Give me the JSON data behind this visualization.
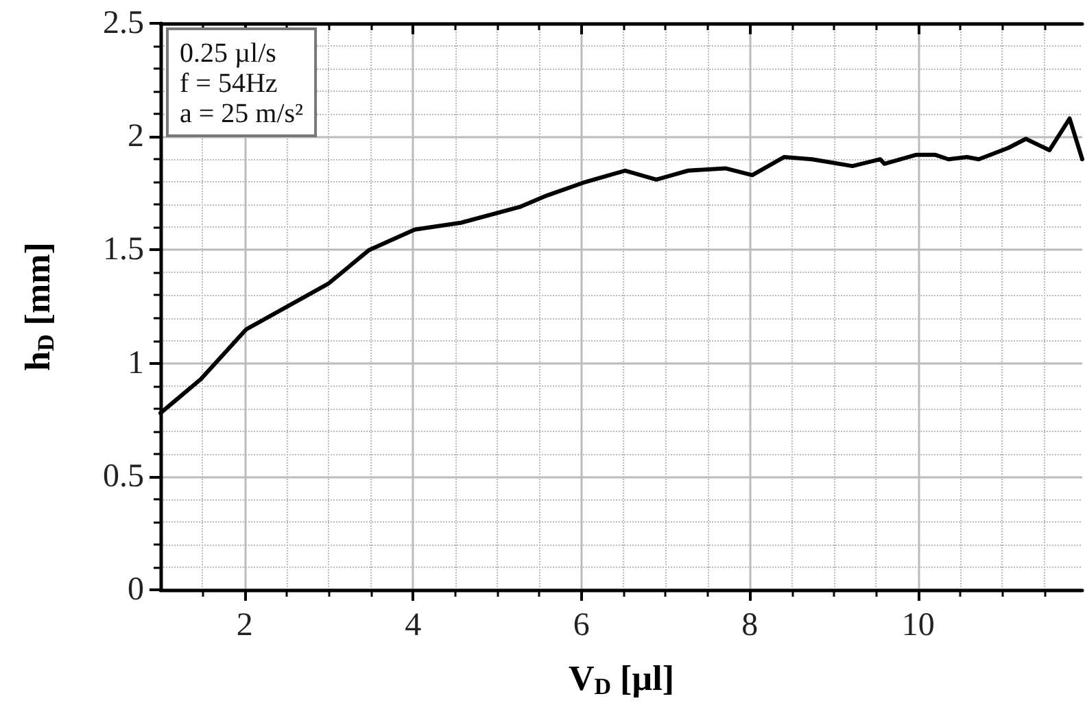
{
  "chart_data": {
    "type": "line",
    "xlabel": "V$_{D}$ [µl]",
    "ylabel": "h$_{D}$ [mm]",
    "annotations": [
      "0.25 µl/s",
      "f = 54Hz",
      "a = 25 m/s²"
    ],
    "x": [
      1,
      1.48,
      2.02,
      2.99,
      3.48,
      4.02,
      4.57,
      5.27,
      5.59,
      6.05,
      6.52,
      6.89,
      7.27,
      7.71,
      8.03,
      8.41,
      8.74,
      9.22,
      9.55,
      9.6,
      9.98,
      10.2,
      10.36,
      10.58,
      10.72,
      11.07,
      11.28,
      11.56,
      11.8,
      11.95
    ],
    "series": [
      {
        "color": "#000000",
        "values": [
          0.78,
          0.93,
          1.15,
          1.35,
          1.5,
          1.59,
          1.62,
          1.69,
          1.74,
          1.8,
          1.85,
          1.81,
          1.85,
          1.86,
          1.83,
          1.91,
          1.9,
          1.87,
          1.9,
          1.88,
          1.92,
          1.92,
          1.9,
          1.91,
          1.9,
          1.95,
          1.99,
          1.94,
          2.08,
          1.9
        ]
      }
    ],
    "xlim": [
      1,
      11.95
    ],
    "xticks": [
      2,
      4,
      6,
      8,
      10
    ],
    "ylim": [
      0,
      2.5
    ],
    "yticks": [
      0,
      0.5,
      1,
      1.5,
      2,
      2.5
    ],
    "grid": true,
    "marker": "none",
    "line_style": "solid"
  }
}
